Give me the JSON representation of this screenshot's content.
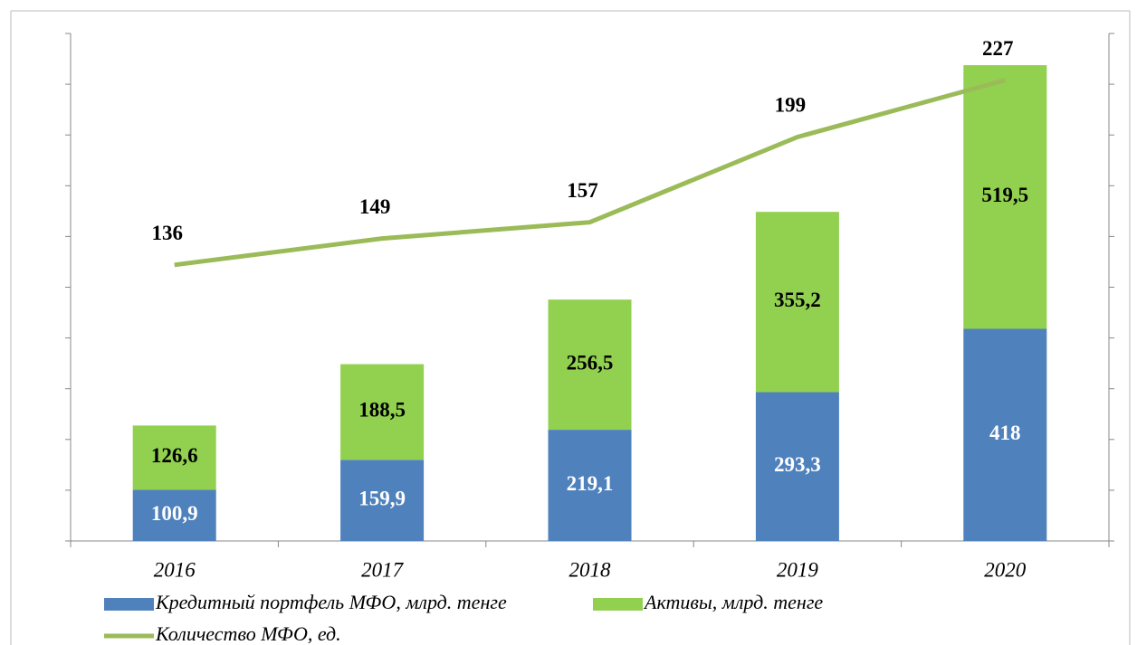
{
  "chart_data": {
    "type": "bar",
    "categories": [
      "2016",
      "2017",
      "2018",
      "2019",
      "2020"
    ],
    "series": [
      {
        "name": "Кредитный портфель МФО, млрд. тенге",
        "color": "#4f81bd",
        "stacked": true,
        "values": [
          100.9,
          159.9,
          219.1,
          293.3,
          418
        ],
        "value_labels": [
          "100,9",
          "159,9",
          "219,1",
          "293,3",
          "418"
        ]
      },
      {
        "name": "Активы, млрд. тенге",
        "color": "#92d050",
        "stacked": true,
        "values": [
          126.6,
          188.5,
          256.5,
          355.2,
          519.5
        ],
        "value_labels": [
          "126,6",
          "188,5",
          "256,5",
          "355,2",
          "519,5"
        ]
      },
      {
        "name": "Количество МФО, ед.",
        "color": "#9bbb59",
        "type": "line",
        "axis": "y2",
        "values": [
          136,
          149,
          157,
          199,
          227
        ]
      }
    ],
    "ylim": [
      0,
      1000
    ],
    "yticks": [
      0,
      100,
      200,
      300,
      400,
      500,
      600,
      700,
      800,
      900,
      1000
    ],
    "y2lim": [
      0,
      250
    ],
    "y2ticks": [
      0,
      25,
      50,
      75,
      100,
      125,
      150,
      175,
      200,
      225,
      250
    ],
    "legend": "bottom"
  }
}
